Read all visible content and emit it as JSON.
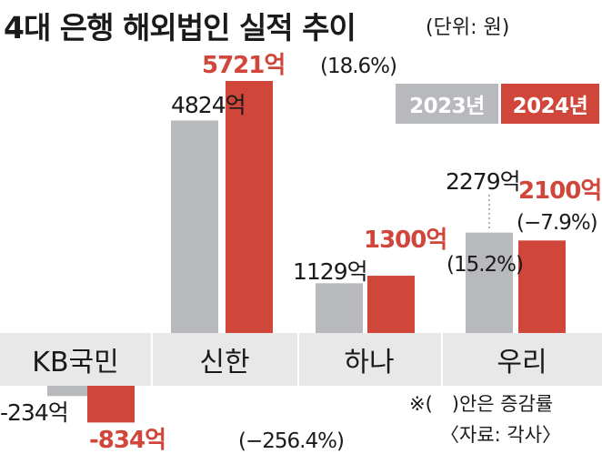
{
  "title": "4대 은행 해외법인 실적 추이",
  "unit_note": "(단위: 원)",
  "footnote": "※(　)안은 증감률",
  "source": "〈자료: 각사〉",
  "colors": {
    "y2023": "#b7b9bc",
    "y2024": "#d0463b",
    "band": "#e8e8e9",
    "text": "#1a1a1a"
  },
  "chart_data": {
    "type": "bar",
    "title": "4대 은행 해외법인 실적 추이",
    "unit": "(단위: 원)",
    "categories": [
      "KB국민",
      "신한",
      "하나",
      "우리"
    ],
    "series": [
      {
        "name": "2023년",
        "values": [
          -234,
          4824,
          1129,
          2279
        ],
        "labels": [
          "-234억",
          "4824억",
          "1129억",
          "2279억"
        ]
      },
      {
        "name": "2024년",
        "values": [
          -834,
          5721,
          1300,
          2100
        ],
        "labels": [
          "-834억",
          "5721억",
          "1300억",
          "2100억"
        ],
        "changes": [
          "(−256.4%)",
          "(18.6%)",
          "(15.2%)",
          "(−7.9%)"
        ]
      }
    ],
    "legend": [
      "2023년",
      "2024년"
    ],
    "legend_position": "top-right",
    "grid": false
  }
}
